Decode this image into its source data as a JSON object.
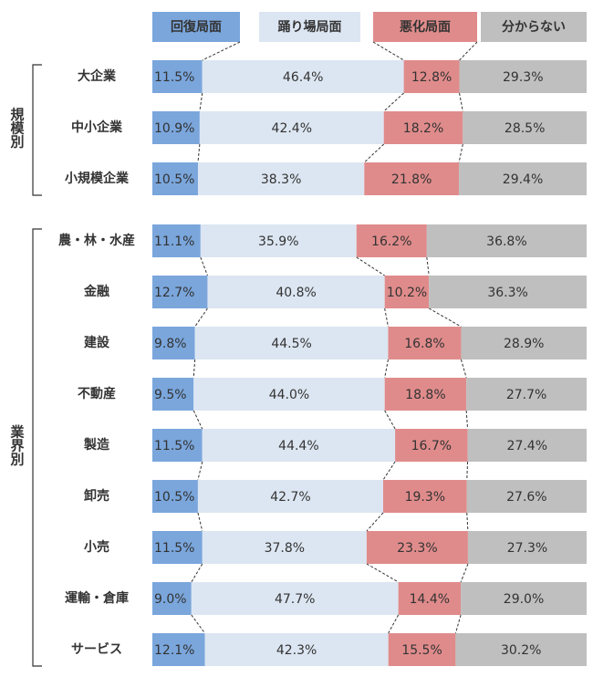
{
  "chart_data": {
    "type": "bar",
    "orientation": "horizontal",
    "stacked": true,
    "series": [
      {
        "name": "回復局面",
        "color": "#7aa6dc",
        "label_color": "#333333",
        "values": [
          [
            11.5,
            10.9,
            10.5
          ],
          [
            11.1,
            12.7,
            9.8,
            9.5,
            11.5,
            10.5,
            11.5,
            9.0,
            12.1
          ]
        ],
        "value_labels": [
          [
            "11.5%",
            "10.9%",
            "10.5%"
          ],
          [
            "11.1%",
            "12.7%",
            "9.8%",
            "9.5%",
            "11.5%",
            "10.5%",
            "11.5%",
            "9.0%",
            "12.1%"
          ]
        ]
      },
      {
        "name": "踊り場局面",
        "color": "#dce6f2",
        "label_color": "#333333",
        "values": [
          [
            46.4,
            42.4,
            38.3
          ],
          [
            35.9,
            40.8,
            44.5,
            44.0,
            44.4,
            42.7,
            37.8,
            47.7,
            42.3
          ]
        ],
        "value_labels": [
          [
            "46.4%",
            "42.4%",
            "38.3%"
          ],
          [
            "35.9%",
            "40.8%",
            "44.5%",
            "44.0%",
            "44.4%",
            "42.7%",
            "37.8%",
            "47.7%",
            "42.3%"
          ]
        ]
      },
      {
        "name": "悪化局面",
        "color": "#e08b8b",
        "label_color": "#ffffff",
        "values": [
          [
            12.8,
            18.2,
            21.8
          ],
          [
            16.2,
            10.2,
            16.8,
            18.8,
            16.7,
            19.3,
            23.3,
            14.4,
            15.5
          ]
        ],
        "value_labels": [
          [
            "12.8%",
            "18.2%",
            "21.8%"
          ],
          [
            "16.2%",
            "10.2%",
            "16.8%",
            "18.8%",
            "16.7%",
            "19.3%",
            "23.3%",
            "14.4%",
            "15.5%"
          ]
        ]
      },
      {
        "name": "分からない",
        "color": "#bfbfbf",
        "label_color": "#333333",
        "values": [
          [
            29.3,
            28.5,
            29.4
          ],
          [
            36.8,
            36.3,
            28.9,
            27.7,
            27.4,
            27.6,
            27.3,
            29.0,
            30.2
          ]
        ],
        "value_labels": [
          [
            "29.3%",
            "28.5%",
            "29.4%"
          ],
          [
            "36.8%",
            "36.3%",
            "28.9%",
            "27.7%",
            "27.4%",
            "27.6%",
            "27.3%",
            "29.0%",
            "30.2%"
          ]
        ]
      }
    ],
    "groups": [
      {
        "label": "規模別",
        "categories": [
          "大企業",
          "中小企業",
          "小規模企業"
        ]
      },
      {
        "label": "業界別",
        "categories": [
          "農・林・水産",
          "金融",
          "建設",
          "不動産",
          "製造",
          "卸売",
          "小売",
          "運輸・倉庫",
          "サービス"
        ]
      }
    ]
  }
}
